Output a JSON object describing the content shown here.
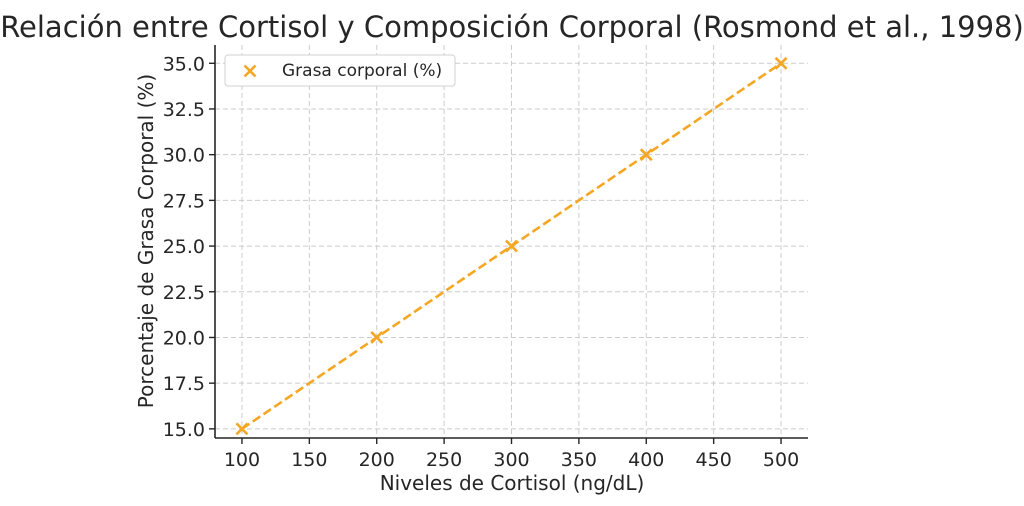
{
  "chart_data": {
    "type": "line",
    "title": "Relación entre Cortisol y Composición Corporal (Rosmond et al., 1998)",
    "xlabel": "Niveles de Cortisol (ng/dL)",
    "ylabel": "Porcentaje de Grasa Corporal (%)",
    "x": [
      100,
      200,
      300,
      400,
      500
    ],
    "series": [
      {
        "name": "Grasa corporal (%)",
        "values": [
          15,
          20,
          25,
          30,
          35
        ],
        "color": "#f5a623",
        "marker": "x",
        "linestyle": "dashed"
      }
    ],
    "xlim": [
      80,
      520
    ],
    "ylim": [
      14.5,
      36.0
    ],
    "xticks": [
      "100",
      "150",
      "200",
      "250",
      "300",
      "350",
      "400",
      "450",
      "500"
    ],
    "yticks": [
      "15.0",
      "17.5",
      "20.0",
      "22.5",
      "25.0",
      "27.5",
      "30.0",
      "32.5",
      "35.0"
    ],
    "grid": true,
    "legend_position": "top-left"
  }
}
